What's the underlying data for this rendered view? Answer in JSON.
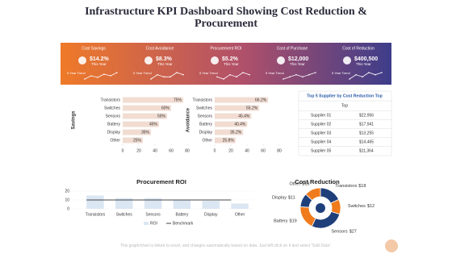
{
  "header": {
    "title": "Infrastructure KPI Dashboard Showing Cost Reduction & Procurement"
  },
  "kpis": [
    {
      "label": "Cost Savings",
      "value": "$14.2%",
      "period": "This Year",
      "trend_label": "5 Year Trend",
      "trend": [
        3,
        5,
        4,
        6,
        5,
        7
      ]
    },
    {
      "label": "Cost Avoidance",
      "value": "$8.3%",
      "period": "This Year",
      "trend_label": "5 Year Trend",
      "trend": [
        4,
        6,
        5,
        5,
        7,
        6
      ]
    },
    {
      "label": "Procurement ROI",
      "value": "$5.2%",
      "period": "This Year",
      "trend_label": "5 Year Trend",
      "trend": [
        5,
        4,
        6,
        5,
        7,
        6
      ]
    },
    {
      "label": "Cost of Purchase",
      "value": "$12,000",
      "period": "This Year",
      "trend_label": "5 Year Trend",
      "trend": [
        4,
        5,
        6,
        5,
        6,
        7
      ]
    },
    {
      "label": "Cost of Reduction",
      "value": "$400,500",
      "period": "This Year",
      "trend_label": "5 Year Trend",
      "trend": [
        3,
        5,
        4,
        6,
        5,
        6
      ]
    }
  ],
  "chart_data": [
    {
      "type": "bar",
      "orientation": "horizontal",
      "ylabel": "Savings",
      "color": "#f2dcd2",
      "categories": [
        "Transistors",
        "Switches",
        "Sensors",
        "Battery",
        "Display",
        "Other"
      ],
      "values": [
        75,
        60,
        55,
        45,
        35,
        25
      ],
      "value_labels": [
        "75%",
        "60%",
        "55%",
        "45%",
        "35%",
        "25%"
      ],
      "xlim": [
        0,
        80
      ],
      "xticks": [
        0,
        20,
        40,
        60,
        80
      ]
    },
    {
      "type": "bar",
      "orientation": "horizontal",
      "ylabel": "Avoidance",
      "color": "#f2dcd2",
      "categories": [
        "Transistors",
        "Switches",
        "Sensors",
        "Battery",
        "Display",
        "Other"
      ],
      "values": [
        66.2,
        55.2,
        45.4,
        40.4,
        35.2,
        25.8
      ],
      "value_labels": [
        "66.2%",
        "55.2%",
        "45.4%",
        "40.4%",
        "35.2%",
        "25.8%"
      ],
      "xlim": [
        0,
        80
      ],
      "xticks": [
        0,
        20,
        40,
        60,
        80
      ]
    },
    {
      "type": "combo",
      "title": "Procurement ROI",
      "categories": [
        "Transistors",
        "Switches",
        "Sensors",
        "Battery",
        "Display",
        "Other"
      ],
      "series": [
        {
          "name": "ROI",
          "type": "bar",
          "color": "#dbe6f3",
          "values": [
            15,
            12,
            12,
            10,
            9,
            6
          ]
        },
        {
          "name": "Benchmark",
          "type": "line",
          "color": "#111111",
          "values": [
            10,
            10,
            10,
            10,
            10,
            10
          ]
        }
      ],
      "ylim": [
        0,
        20
      ],
      "yticks": [
        0,
        10,
        20
      ]
    },
    {
      "type": "donut",
      "title": "Cost Reduction",
      "categories": [
        "Transistors",
        "Switches",
        "Sensors",
        "Battery",
        "Display",
        "Other"
      ],
      "values": [
        18,
        12,
        27,
        19,
        11,
        13
      ],
      "value_labels": [
        "$18",
        "$12",
        "$27",
        "$19",
        "$11",
        "$13"
      ],
      "colors": [
        "#1f3f7a",
        "#f07b1d",
        "#1f3f7a",
        "#f07b1d",
        "#1f3f7a",
        "#f07b1d"
      ]
    }
  ],
  "table": {
    "title": "Top 5 Supplier by Cost Reduction Top",
    "header": "Top",
    "rows": [
      [
        "Supplier 01",
        "$22,956"
      ],
      [
        "Supplier 02",
        "$17,941"
      ],
      [
        "Supplier 03",
        "$13,255"
      ],
      [
        "Supplier 04",
        "$14,465"
      ],
      [
        "Supplier 05",
        "$11,364"
      ]
    ]
  },
  "footer": "This graph/chart is linked to excel, and changes automatically based on data. Just left click on it and select \"Edit Data\"."
}
